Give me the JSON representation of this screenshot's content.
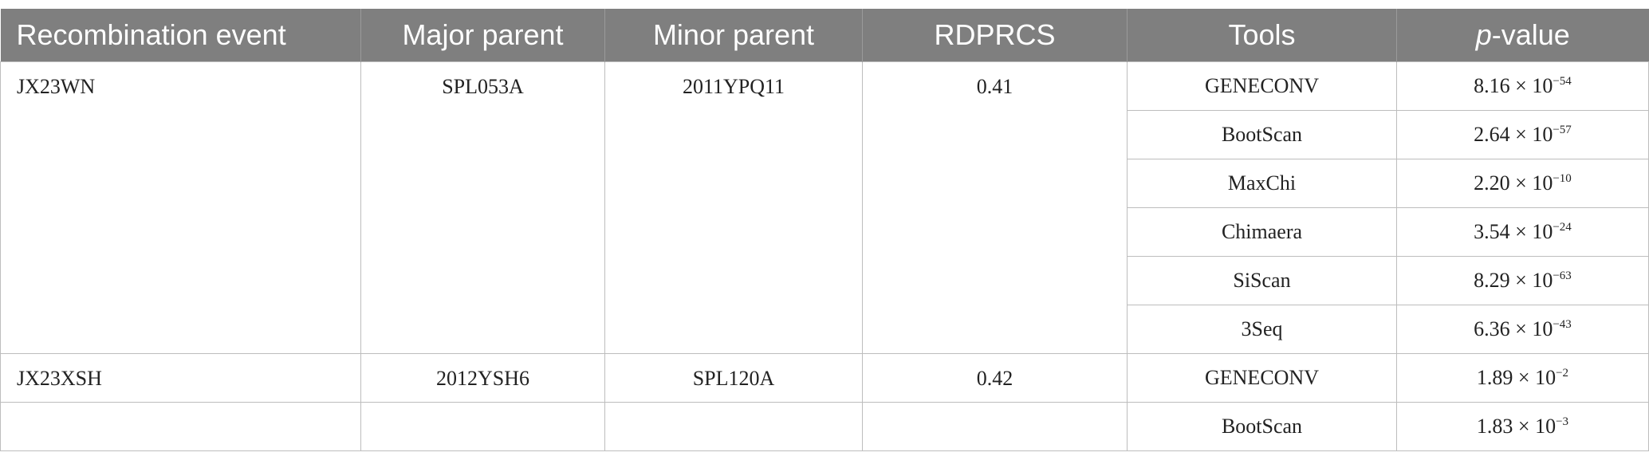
{
  "table": {
    "header": [
      "Recombination event",
      "Major parent",
      "Minor parent",
      "RDPRCS",
      "Tools",
      {
        "italic": "p",
        "text": "-value"
      }
    ],
    "groups": [
      {
        "event": "JX23WN",
        "major": "SPL053A",
        "minor": "2011YPQ11",
        "rdprcs": "0.41",
        "tools": [
          {
            "tool": "GENECONV",
            "p": {
              "base": "8.16 × 10",
              "exp": "−54"
            }
          },
          {
            "tool": "BootScan",
            "p": {
              "base": "2.64 × 10",
              "exp": "−57"
            }
          },
          {
            "tool": "MaxChi",
            "p": {
              "base": "2.20 × 10",
              "exp": "−10"
            }
          },
          {
            "tool": "Chimaera",
            "p": {
              "base": "3.54 × 10",
              "exp": "−24"
            }
          },
          {
            "tool": "SiScan",
            "p": {
              "base": "8.29 × 10",
              "exp": "−63"
            }
          },
          {
            "tool": "3Seq",
            "p": {
              "base": "6.36 × 10",
              "exp": "−43"
            }
          }
        ]
      },
      {
        "event": "JX23XSH",
        "major": "2012YSH6",
        "minor": "SPL120A",
        "rdprcs": "0.42",
        "tools": [
          {
            "tool": "GENECONV",
            "p": {
              "base": "1.89 × 10",
              "exp": "−2"
            }
          },
          {
            "tool": "BootScan",
            "p": {
              "base": "1.83 × 10",
              "exp": "−3"
            }
          }
        ]
      }
    ]
  }
}
